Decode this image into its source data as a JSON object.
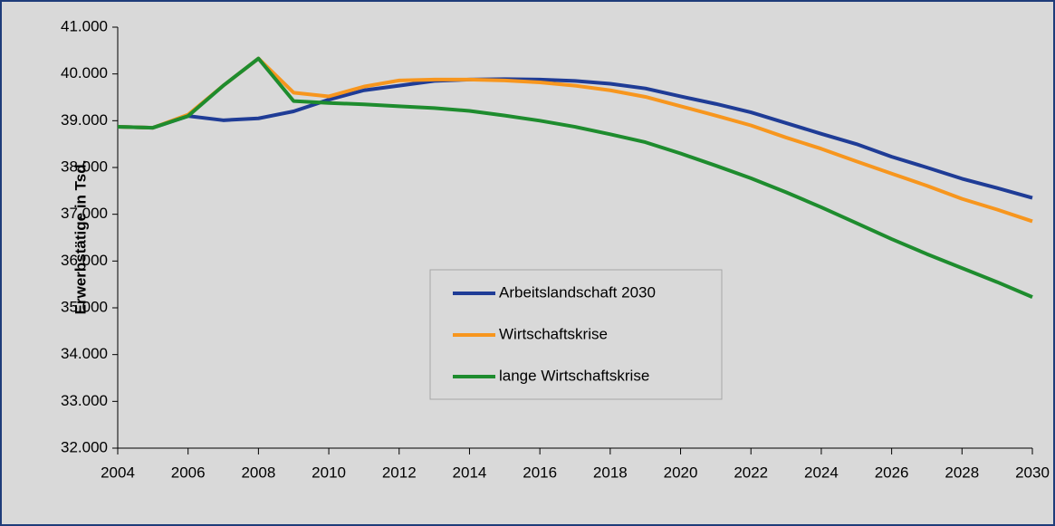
{
  "chart_data": {
    "type": "line",
    "y_label": "Erwerbstätige in Tsd.",
    "x": [
      2004,
      2005,
      2006,
      2007,
      2008,
      2009,
      2010,
      2011,
      2012,
      2013,
      2014,
      2015,
      2016,
      2017,
      2018,
      2019,
      2020,
      2021,
      2022,
      2023,
      2024,
      2025,
      2026,
      2027,
      2028,
      2029,
      2030
    ],
    "series": [
      {
        "name": "Arbeitslandschaft 2030",
        "color": "#1f3c96",
        "values": [
          38870,
          38850,
          39100,
          39010,
          39050,
          39200,
          39450,
          39650,
          39750,
          39850,
          39880,
          39890,
          39880,
          39850,
          39790,
          39690,
          39520,
          39360,
          39180,
          38950,
          38720,
          38500,
          38230,
          38000,
          37760,
          37560,
          37350
        ]
      },
      {
        "name": "Wirtschaftskrise",
        "color": "#f7961e",
        "values": [
          38870,
          38850,
          39130,
          39750,
          40330,
          39600,
          39520,
          39730,
          39860,
          39880,
          39880,
          39860,
          39820,
          39750,
          39650,
          39510,
          39310,
          39110,
          38900,
          38640,
          38400,
          38130,
          37870,
          37610,
          37330,
          37100,
          36850
        ]
      },
      {
        "name": "lange Wirtschaftskrise",
        "color": "#1e8c2e",
        "values": [
          38870,
          38850,
          39100,
          39750,
          40330,
          39420,
          39380,
          39350,
          39310,
          39270,
          39210,
          39110,
          39000,
          38870,
          38710,
          38540,
          38300,
          38040,
          37770,
          37470,
          37150,
          36810,
          36470,
          36150,
          35850,
          35550,
          35230
        ]
      }
    ],
    "xlim": [
      2004,
      2030
    ],
    "xticks": [
      2004,
      2006,
      2008,
      2010,
      2012,
      2014,
      2016,
      2018,
      2020,
      2022,
      2024,
      2026,
      2028,
      2030
    ],
    "ylim": [
      32000,
      41000
    ],
    "yticks": [
      {
        "value": 32000,
        "label": "32.000"
      },
      {
        "value": 33000,
        "label": "33.000"
      },
      {
        "value": 34000,
        "label": "34.000"
      },
      {
        "value": 35000,
        "label": "35.000"
      },
      {
        "value": 36000,
        "label": "36.000"
      },
      {
        "value": 37000,
        "label": "37.000"
      },
      {
        "value": 38000,
        "label": "38.000"
      },
      {
        "value": 39000,
        "label": "39.000"
      },
      {
        "value": 40000,
        "label": "40.000"
      },
      {
        "value": 41000,
        "label": "41.000"
      }
    ],
    "legend": "center"
  }
}
